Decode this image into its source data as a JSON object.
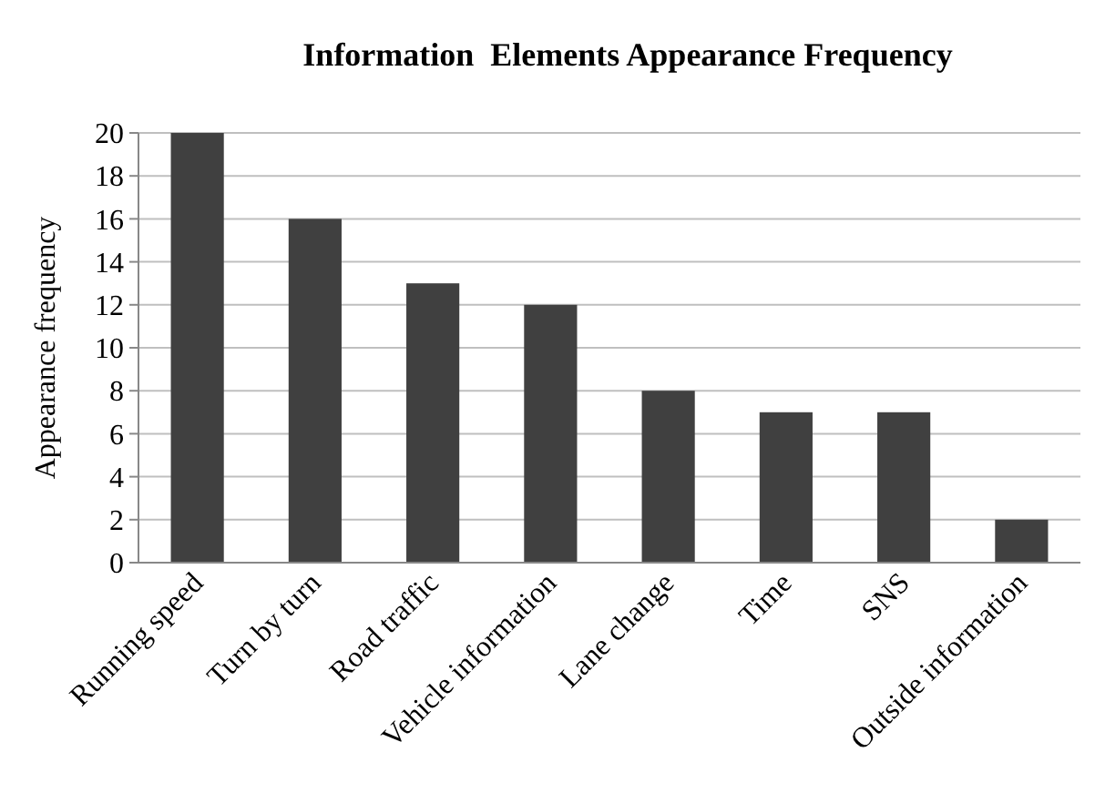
{
  "chart_data": {
    "type": "bar",
    "title": "Information  Elements Appearance Frequency",
    "ylabel": "Appearance frequency",
    "categories": [
      "Running speed",
      "Turn by turn",
      "Road traffic",
      "Vehicle information",
      "Lane change",
      "Time",
      "SNS",
      "Outside information"
    ],
    "values": [
      20,
      16,
      13,
      12,
      8,
      7,
      7,
      2
    ],
    "color": "#404040",
    "ylim": [
      0,
      20
    ],
    "yticks": [
      0,
      2,
      4,
      6,
      8,
      10,
      12,
      14,
      16,
      18,
      20
    ],
    "grid": "y"
  }
}
